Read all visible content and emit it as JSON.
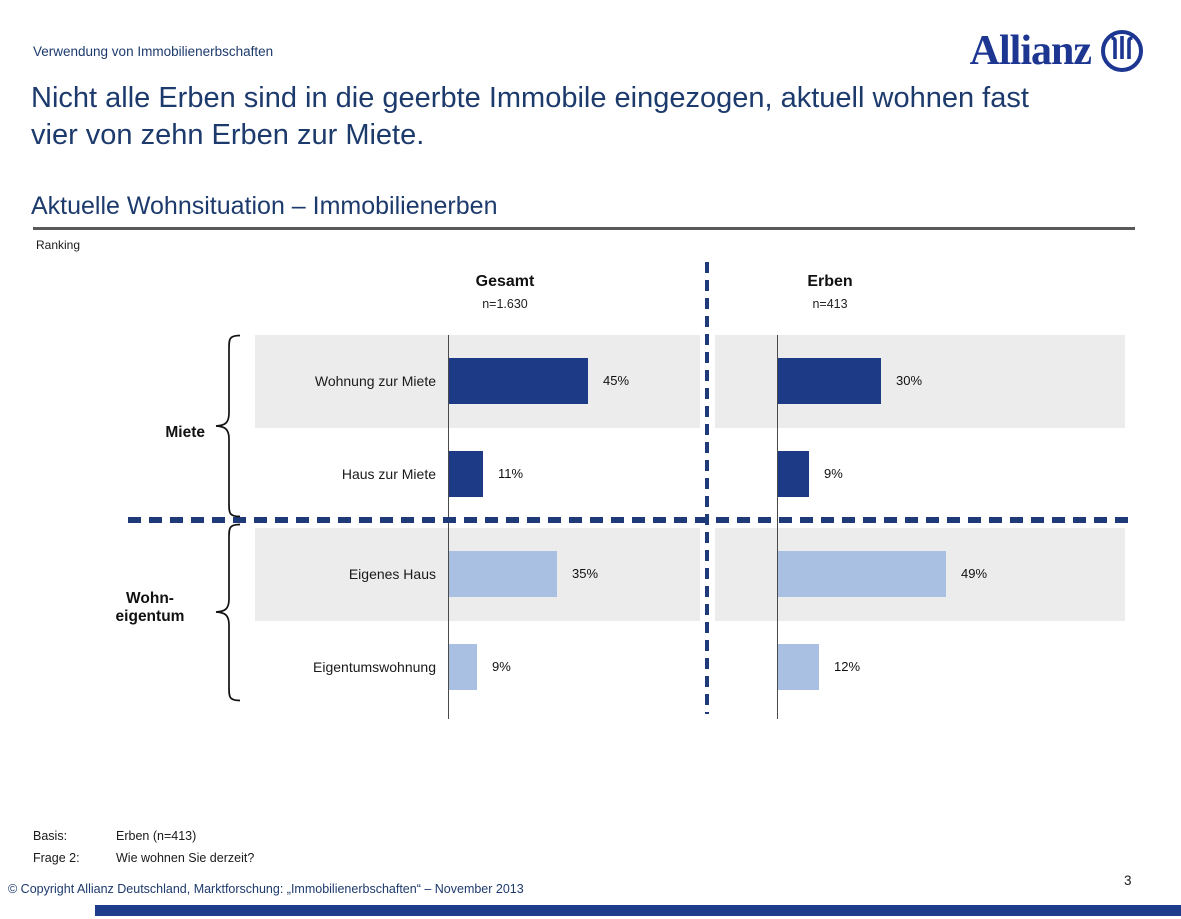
{
  "page": {
    "eyebrow": "Verwendung von Immobilienerbschaften",
    "headline": "Nicht alle Erben sind in die geerbte Immobile eingezogen, aktuell wohnen fast vier von zehn Erben zur Miete.",
    "section_title": "Aktuelle Wohnsituation – Immobilienerben",
    "ranking_label": "Ranking",
    "notes": [
      {
        "label": "Basis:",
        "text": "Erben (n=413)"
      },
      {
        "label": "Frage 2:",
        "text": "Wie wohnen Sie derzeit?"
      }
    ],
    "copyright": "© Copyright Allianz Deutschland, Marktforschung: „Immobilienerbschaften“ – November 2013",
    "page_number": "3"
  },
  "logo": {
    "brand": "Allianz",
    "emblem_icon": "allianz-eagle-emblem",
    "color": "#1c3691"
  },
  "chart_data": {
    "type": "bar",
    "orientation": "horizontal",
    "groups": [
      {
        "label": "Gesamt",
        "n_label": "n=1.630"
      },
      {
        "label": "Erben",
        "n_label": "n=413"
      }
    ],
    "categories": [
      "Wohnung zur Miete",
      "Haus zur Miete",
      "Eigenes Haus",
      "Eigentumswohnung"
    ],
    "series": [
      {
        "name": "Gesamt",
        "values": [
          45,
          11,
          35,
          9
        ]
      },
      {
        "name": "Erben",
        "values": [
          30,
          9,
          49,
          12
        ]
      }
    ],
    "value_labels": [
      [
        "45%",
        "11%",
        "35%",
        "9%"
      ],
      [
        "30%",
        "9%",
        "49%",
        "12%"
      ]
    ],
    "brackets": [
      {
        "label": "Miete",
        "rows": [
          0,
          1
        ]
      },
      {
        "label_lines": [
          "Wohn-",
          "eigentum"
        ],
        "rows": [
          2,
          3
        ]
      }
    ],
    "colors": {
      "miete_bar": "#1d3a86",
      "eigentum_bar": "#a9c0e2",
      "row_band": "#ececec",
      "divider": "#1e3a78"
    },
    "xlim": [
      0,
      50
    ],
    "grid": false,
    "legend": false
  }
}
